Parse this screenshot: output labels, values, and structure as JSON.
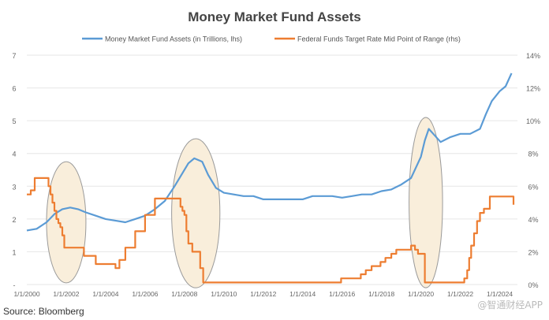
{
  "source": "Source: Bloomberg",
  "watermark": "@智通财经APP",
  "chart_data": {
    "type": "line",
    "title": "Money Market Fund Assets",
    "grid": true,
    "legend_position": "top",
    "x_ticks": [
      "1/1/2000",
      "1/1/2002",
      "1/1/2004",
      "1/1/2006",
      "1/1/2008",
      "1/1/2010",
      "1/1/2012",
      "1/1/2014",
      "1/1/2016",
      "1/1/2018",
      "1/1/2020",
      "1/1/2022",
      "1/1/2024"
    ],
    "xlim": [
      2000,
      2024.9
    ],
    "y_left": {
      "range": [
        0,
        7
      ],
      "ticks": [
        "-",
        "1",
        "2",
        "3",
        "4",
        "5",
        "6",
        "7"
      ],
      "values": [
        0,
        1,
        2,
        3,
        4,
        5,
        6,
        7
      ]
    },
    "y_right": {
      "range": [
        0,
        14
      ],
      "ticks": [
        "0%",
        "2%",
        "4%",
        "6%",
        "8%",
        "10%",
        "12%",
        "14%"
      ],
      "values": [
        0,
        2,
        4,
        6,
        8,
        10,
        12,
        14
      ]
    },
    "series": [
      {
        "name": "Money Market Fund Assets (in Trillions, lhs)",
        "color": "#5b9bd5",
        "axis": "left",
        "x": [
          2000,
          2000.5,
          2001,
          2001.4,
          2001.8,
          2002.2,
          2002.6,
          2003,
          2003.5,
          2004,
          2004.5,
          2005,
          2005.5,
          2006,
          2006.5,
          2007,
          2007.5,
          2007.9,
          2008.2,
          2008.5,
          2008.9,
          2009.2,
          2009.6,
          2010,
          2010.5,
          2011,
          2011.5,
          2012,
          2012.5,
          2013,
          2013.5,
          2014,
          2014.5,
          2015,
          2015.5,
          2016,
          2016.5,
          2017,
          2017.5,
          2018,
          2018.5,
          2019,
          2019.5,
          2020,
          2020.2,
          2020.4,
          2020.7,
          2021,
          2021.5,
          2022,
          2022.5,
          2023,
          2023.3,
          2023.6,
          2024,
          2024.3,
          2024.6
        ],
        "y": [
          1.65,
          1.7,
          1.9,
          2.15,
          2.3,
          2.35,
          2.3,
          2.2,
          2.1,
          2.0,
          1.95,
          1.9,
          2.0,
          2.1,
          2.3,
          2.55,
          3.0,
          3.4,
          3.7,
          3.85,
          3.75,
          3.35,
          2.95,
          2.8,
          2.75,
          2.7,
          2.7,
          2.6,
          2.6,
          2.6,
          2.6,
          2.6,
          2.7,
          2.7,
          2.7,
          2.65,
          2.7,
          2.75,
          2.75,
          2.85,
          2.9,
          3.05,
          3.25,
          3.9,
          4.4,
          4.75,
          4.55,
          4.35,
          4.5,
          4.6,
          4.6,
          4.75,
          5.2,
          5.6,
          5.9,
          6.05,
          6.45
        ]
      },
      {
        "name": "Federal Funds Target Rate Mid Point of Range (rhs)",
        "color": "#ed7d31",
        "axis": "right",
        "step": true,
        "x": [
          2000,
          2000.2,
          2000.4,
          2001,
          2001.1,
          2001.2,
          2001.3,
          2001.4,
          2001.5,
          2001.6,
          2001.7,
          2001.8,
          2001.9,
          2002.9,
          2003.5,
          2004.5,
          2004.7,
          2005,
          2005.5,
          2006,
          2006.5,
          2007.7,
          2007.8,
          2007.9,
          2008.0,
          2008.1,
          2008.2,
          2008.4,
          2008.8,
          2008.95,
          2015.95,
          2016.95,
          2017.2,
          2017.5,
          2017.95,
          2018.2,
          2018.5,
          2018.75,
          2019.5,
          2019.7,
          2019.85,
          2020.2,
          2022.2,
          2022.35,
          2022.45,
          2022.55,
          2022.7,
          2022.85,
          2023.0,
          2023.2,
          2023.5,
          2024.7
        ],
        "y": [
          5.5,
          5.75,
          6.5,
          6.5,
          6.0,
          5.5,
          5.0,
          4.5,
          4.0,
          3.75,
          3.5,
          3.0,
          2.25,
          1.75,
          1.25,
          1.0,
          1.5,
          2.25,
          3.25,
          4.25,
          5.25,
          5.25,
          4.75,
          4.5,
          4.25,
          3.25,
          2.5,
          2.0,
          1.0,
          0.125,
          0.375,
          0.625,
          0.875,
          1.125,
          1.375,
          1.625,
          1.875,
          2.125,
          2.375,
          2.125,
          1.875,
          0.125,
          0.375,
          0.875,
          1.625,
          2.375,
          3.125,
          3.875,
          4.375,
          4.625,
          5.375,
          4.875
        ]
      }
    ],
    "annotations": [
      {
        "shape": "ellipse",
        "fill": "#f9eedb",
        "x_range": [
          2001.0,
          2003.0
        ],
        "y_range": [
          0.05,
          3.75
        ]
      },
      {
        "shape": "ellipse",
        "fill": "#f9eedb",
        "x_range": [
          2007.35,
          2009.8
        ],
        "y_range": [
          -0.1,
          4.45
        ]
      },
      {
        "shape": "ellipse",
        "fill": "#f9eedb",
        "x_range": [
          2019.4,
          2021.1
        ],
        "y_range": [
          -0.1,
          5.1
        ]
      }
    ]
  }
}
